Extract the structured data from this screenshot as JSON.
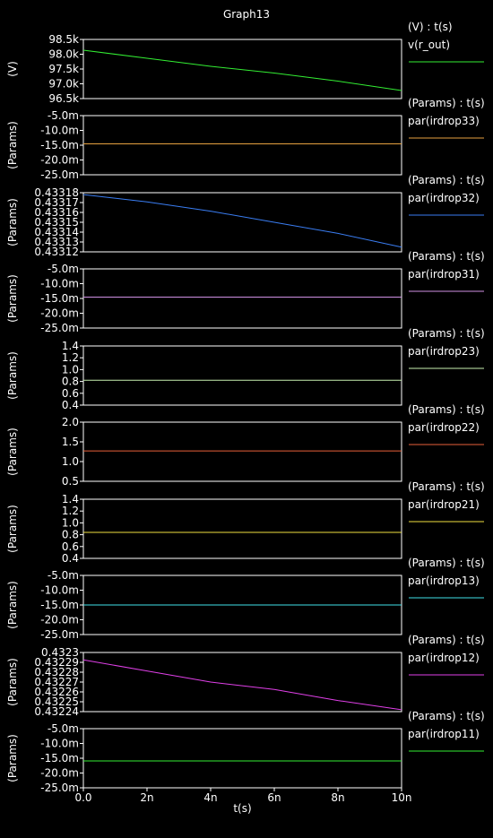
{
  "window": {
    "title": "Graph13"
  },
  "colors": {
    "background": "#000000",
    "frame": "#ffffff",
    "text": "#ffffff"
  },
  "chart_data": {
    "type": "line",
    "title": "Graph13",
    "xlabel": "t(s)",
    "xlim": [
      0,
      10
    ],
    "xticks": [
      "0.0",
      "2n",
      "4n",
      "6n",
      "8n",
      "10n"
    ],
    "panels": [
      {
        "ylabel": "(V)",
        "header": "(V) : t(s)",
        "series": "v(r_out)",
        "color": "#33ee33",
        "yticks": [
          "98.5k",
          "98.0k",
          "97.5k",
          "97.0k",
          "96.5k"
        ],
        "ylim": [
          96.4,
          98.6
        ],
        "x": [
          0,
          2,
          4,
          6,
          8,
          10
        ],
        "y": [
          98.2,
          97.9,
          97.6,
          97.35,
          97.05,
          96.7
        ]
      },
      {
        "ylabel": "(Params)",
        "header": "(Params) : t(s)",
        "series": "par(irdrop33)",
        "color": "#e6a040",
        "yticks": [
          "-5.0m",
          "-10.0m",
          "-15.0m",
          "-20.0m",
          "-25.0m"
        ],
        "ylim": [
          -26,
          -4
        ],
        "x": [
          0,
          10
        ],
        "y": [
          -14.5,
          -14.5
        ]
      },
      {
        "ylabel": "(Params)",
        "header": "(Params) : t(s)",
        "series": "par(irdrop32)",
        "color": "#3a7df2",
        "yticks": [
          "0.43318",
          "0.43317",
          "0.43316",
          "0.43315",
          "0.43314",
          "0.43313",
          "0.43312"
        ],
        "ylim": [
          0.433118,
          0.433182
        ],
        "x": [
          0,
          2,
          4,
          6,
          8,
          10
        ],
        "y": [
          0.43318,
          0.433172,
          0.433162,
          0.43315,
          0.433138,
          0.433123
        ]
      },
      {
        "ylabel": "(Params)",
        "header": "(Params) : t(s)",
        "series": "par(irdrop31)",
        "color": "#cf8fe3",
        "yticks": [
          "-5.0m",
          "-10.0m",
          "-15.0m",
          "-20.0m",
          "-25.0m"
        ],
        "ylim": [
          -26,
          -4
        ],
        "x": [
          0,
          10
        ],
        "y": [
          -14.5,
          -14.5
        ]
      },
      {
        "ylabel": "(Params)",
        "header": "(Params) : t(s)",
        "series": "par(irdrop23)",
        "color": "#c8f0b0",
        "yticks": [
          "1.4",
          "1.2",
          "1.0",
          "0.8",
          "0.6",
          "0.4"
        ],
        "ylim": [
          0.4,
          1.4
        ],
        "x": [
          0,
          10
        ],
        "y": [
          0.82,
          0.82
        ]
      },
      {
        "ylabel": "(Params)",
        "header": "(Params) : t(s)",
        "series": "par(irdrop22)",
        "color": "#e8603a",
        "yticks": [
          "2.0",
          "1.5",
          "1.0",
          "0.5"
        ],
        "ylim": [
          0.5,
          2.0
        ],
        "x": [
          0,
          10
        ],
        "y": [
          1.27,
          1.27
        ]
      },
      {
        "ylabel": "(Params)",
        "header": "(Params) : t(s)",
        "series": "par(irdrop21)",
        "color": "#f0e040",
        "yticks": [
          "1.4",
          "1.2",
          "1.0",
          "0.8",
          "0.6",
          "0.4"
        ],
        "ylim": [
          0.4,
          1.4
        ],
        "x": [
          0,
          10
        ],
        "y": [
          0.84,
          0.84
        ]
      },
      {
        "ylabel": "(Params)",
        "header": "(Params) : t(s)",
        "series": "par(irdrop13)",
        "color": "#40e0e8",
        "yticks": [
          "-5.0m",
          "-10.0m",
          "-15.0m",
          "-20.0m",
          "-25.0m"
        ],
        "ylim": [
          -26,
          -4
        ],
        "x": [
          0,
          10
        ],
        "y": [
          -15.0,
          -15.0
        ]
      },
      {
        "ylabel": "(Params)",
        "header": "(Params) : t(s)",
        "series": "par(irdrop12)",
        "color": "#e040e8",
        "yticks": [
          "0.4323",
          "0.43229",
          "0.43228",
          "0.43227",
          "0.43226",
          "0.43225",
          "0.43224"
        ],
        "ylim": [
          0.432238,
          0.432302
        ],
        "x": [
          0,
          2,
          4,
          6,
          8,
          10
        ],
        "y": [
          0.432294,
          0.432282,
          0.43227,
          0.432262,
          0.43225,
          0.43224
        ]
      },
      {
        "ylabel": "(Params)",
        "header": "(Params) : t(s)",
        "series": "par(irdrop11)",
        "color": "#33ee33",
        "yticks": [
          "-5.0m",
          "-10.0m",
          "-15.0m",
          "-20.0m",
          "-25.0m"
        ],
        "ylim": [
          -26,
          -4
        ],
        "x": [
          0,
          10
        ],
        "y": [
          -16.0,
          -16.0
        ]
      }
    ]
  }
}
